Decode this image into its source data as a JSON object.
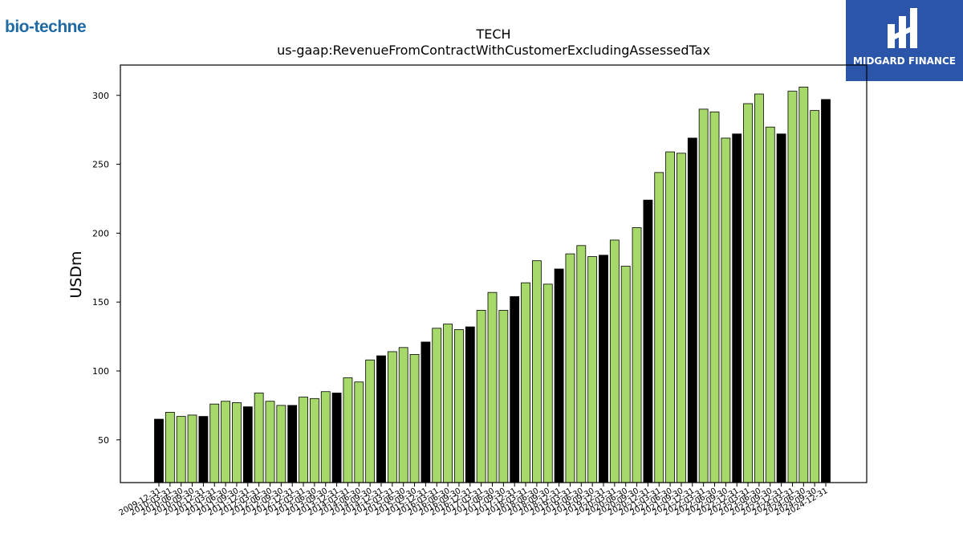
{
  "header": {
    "left_logo_text": "bio-techne",
    "right_logo_text": "MIDGARD FINANCE"
  },
  "chart_data": {
    "type": "bar",
    "title": "TECH",
    "subtitle": "us-gaap:RevenueFromContractWithCustomerExcludingAssessedTax",
    "ylabel": "USDm",
    "xlabel": "",
    "ylim": [
      19,
      322
    ],
    "yticks": [
      50,
      100,
      150,
      200,
      250,
      300
    ],
    "grid": false,
    "colors": {
      "quarterly": "#a6d96a",
      "annual": "#000000",
      "edge": "#000000"
    },
    "categories": [
      "2009-12-31",
      "2010-03-31",
      "2010-06-30",
      "2010-09-30",
      "2010-12-31",
      "2011-03-31",
      "2011-06-30",
      "2011-09-30",
      "2011-12-31",
      "2012-03-31",
      "2012-06-30",
      "2012-09-30",
      "2012-12-31",
      "2013-03-31",
      "2013-06-30",
      "2013-09-30",
      "2013-12-31",
      "2014-03-31",
      "2014-06-30",
      "2014-09-30",
      "2014-12-31",
      "2015-03-31",
      "2015-06-30",
      "2015-09-30",
      "2015-12-31",
      "2016-03-31",
      "2016-06-30",
      "2016-09-30",
      "2016-12-31",
      "2017-03-31",
      "2017-06-30",
      "2017-09-30",
      "2017-12-31",
      "2018-03-31",
      "2018-06-30",
      "2018-09-30",
      "2018-12-31",
      "2019-03-31",
      "2019-06-30",
      "2019-09-30",
      "2019-12-31",
      "2020-03-31",
      "2020-06-30",
      "2020-09-30",
      "2020-12-31",
      "2021-03-31",
      "2021-06-30",
      "2021-09-30",
      "2021-12-31",
      "2022-03-31",
      "2022-06-30",
      "2022-09-30",
      "2022-12-31",
      "2023-03-31",
      "2023-06-30",
      "2023-09-30",
      "2023-12-31",
      "2024-03-31",
      "2024-06-30",
      "2024-09-30",
      "2024-12-31"
    ],
    "values": [
      65,
      70,
      67,
      68,
      67,
      76,
      78,
      77,
      74,
      84,
      78,
      75,
      75,
      81,
      80,
      85,
      84,
      95,
      92,
      108,
      111,
      114,
      117,
      112,
      121,
      131,
      134,
      130,
      132,
      144,
      157,
      144,
      154,
      164,
      180,
      163,
      174,
      185,
      191,
      183,
      184,
      195,
      176,
      204,
      224,
      244,
      259,
      258,
      269,
      290,
      288,
      269,
      272,
      294,
      301,
      277,
      272,
      303,
      306,
      289,
      297
    ],
    "bar_kind": [
      "annual",
      "q",
      "q",
      "q",
      "annual",
      "q",
      "q",
      "q",
      "annual",
      "q",
      "q",
      "q",
      "annual",
      "q",
      "q",
      "q",
      "annual",
      "q",
      "q",
      "q",
      "annual",
      "q",
      "q",
      "q",
      "annual",
      "q",
      "q",
      "q",
      "annual",
      "q",
      "q",
      "q",
      "annual",
      "q",
      "q",
      "q",
      "annual",
      "q",
      "q",
      "q",
      "annual",
      "q",
      "q",
      "q",
      "annual",
      "q",
      "q",
      "q",
      "annual",
      "q",
      "q",
      "q",
      "annual",
      "q",
      "q",
      "q",
      "annual",
      "q",
      "q",
      "q",
      "annual"
    ]
  }
}
